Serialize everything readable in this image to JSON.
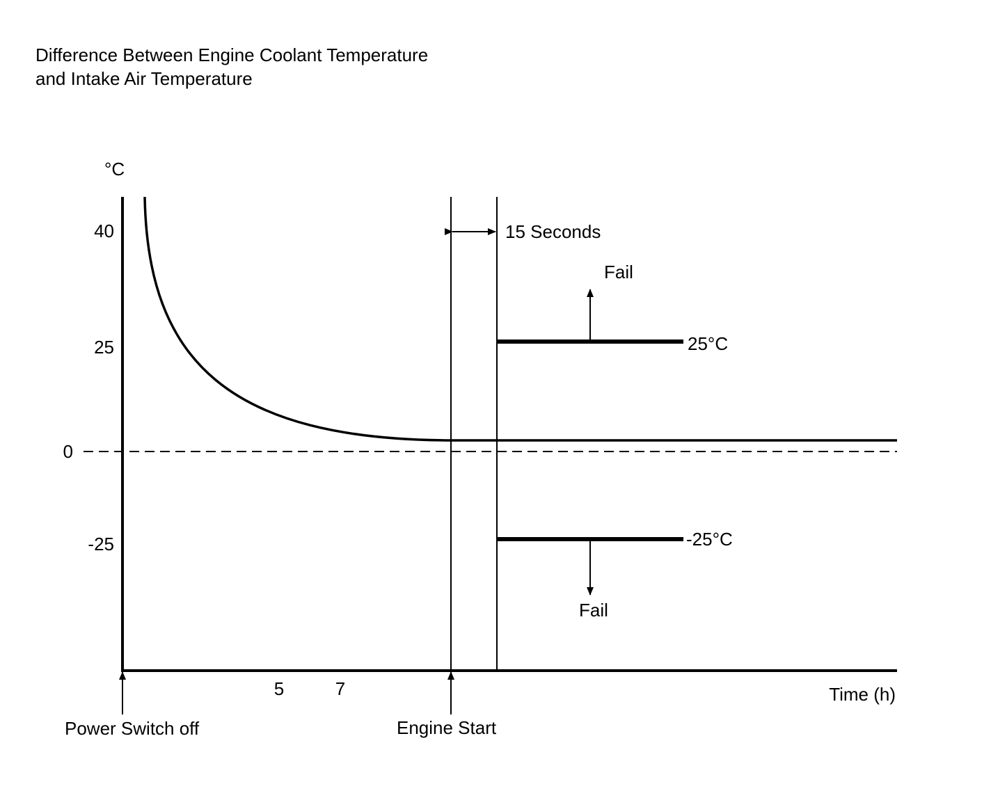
{
  "title": {
    "line1": "Difference Between Engine Coolant Temperature",
    "line2": "and Intake Air Temperature"
  },
  "y_axis": {
    "unit": "°C",
    "ticks": [
      "40",
      "25",
      "0",
      "-25"
    ]
  },
  "x_axis": {
    "label": "Time (h)",
    "ticks": [
      "5",
      "7"
    ]
  },
  "annotations": {
    "interval": "15 Seconds",
    "upper_threshold": "25°C",
    "lower_threshold": "-25°C",
    "fail_upper": "Fail",
    "fail_lower": "Fail",
    "power_switch_off": "Power Switch off",
    "engine_start": "Engine Start"
  },
  "colors": {
    "ink": "#000000",
    "background": "#ffffff"
  }
}
